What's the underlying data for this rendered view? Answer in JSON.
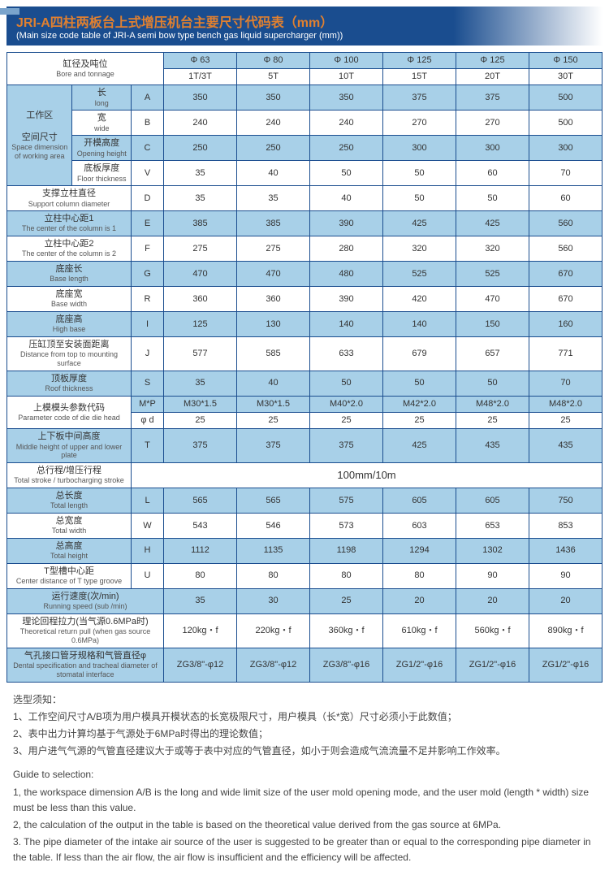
{
  "title": {
    "cn": "JRI-A四柱两板台上式增压机台主要尺寸代码表（mm）",
    "en": "(Main size code table of JRI-A semi bow type bench gas liquid supercharger (mm))"
  },
  "header": {
    "bore_cn": "缸径及吨位",
    "bore_en": "Bore and tonnage",
    "phi": [
      "Φ 63",
      "Φ 80",
      "Φ 100",
      "Φ 125",
      "Φ 125",
      "Φ 150"
    ],
    "ton": [
      "1T/3T",
      "5T",
      "10T",
      "15T",
      "20T",
      "30T"
    ]
  },
  "work": {
    "cn": "工作区",
    "cn2": "空间尺寸",
    "en": "Space dimension",
    "en2": "of working area"
  },
  "rows": [
    {
      "cn": "长",
      "en": "long",
      "code": "A",
      "v": [
        "350",
        "350",
        "350",
        "375",
        "375",
        "500"
      ],
      "bg": "blue"
    },
    {
      "cn": "宽",
      "en": "wide",
      "code": "B",
      "v": [
        "240",
        "240",
        "240",
        "270",
        "270",
        "500"
      ],
      "bg": "white"
    },
    {
      "cn": "开模高度",
      "en": "Opening height",
      "code": "C",
      "v": [
        "250",
        "250",
        "250",
        "300",
        "300",
        "300"
      ],
      "bg": "blue"
    },
    {
      "cn": "底板厚度",
      "en": "Floor thickness",
      "code": "V",
      "v": [
        "35",
        "40",
        "50",
        "50",
        "60",
        "70"
      ],
      "bg": "white"
    }
  ],
  "rows2": [
    {
      "cn": "支撑立柱直径",
      "en": "Support column diameter",
      "code": "D",
      "v": [
        "35",
        "35",
        "40",
        "50",
        "50",
        "60"
      ],
      "bg": "white"
    },
    {
      "cn": "立柱中心距1",
      "en": "The center of the column is 1",
      "code": "E",
      "v": [
        "385",
        "385",
        "390",
        "425",
        "425",
        "560"
      ],
      "bg": "blue"
    },
    {
      "cn": "立柱中心距2",
      "en": "The center of the column is 2",
      "code": "F",
      "v": [
        "275",
        "275",
        "280",
        "320",
        "320",
        "560"
      ],
      "bg": "white"
    },
    {
      "cn": "底座长",
      "en": "Base length",
      "code": "G",
      "v": [
        "470",
        "470",
        "480",
        "525",
        "525",
        "670"
      ],
      "bg": "blue"
    },
    {
      "cn": "底座宽",
      "en": "Base width",
      "code": "R",
      "v": [
        "360",
        "360",
        "390",
        "420",
        "470",
        "670"
      ],
      "bg": "white"
    },
    {
      "cn": "底座高",
      "en": "High base",
      "code": "I",
      "v": [
        "125",
        "130",
        "140",
        "140",
        "150",
        "160"
      ],
      "bg": "blue"
    },
    {
      "cn": "压缸顶至安装面距离",
      "en": "Distance from top to mounting surface",
      "code": "J",
      "v": [
        "577",
        "585",
        "633",
        "679",
        "657",
        "771"
      ],
      "bg": "white"
    },
    {
      "cn": "顶板厚度",
      "en": "Roof thickness",
      "code": "S",
      "v": [
        "35",
        "40",
        "50",
        "50",
        "50",
        "70"
      ],
      "bg": "blue"
    }
  ],
  "param": {
    "cn": "上模模头参数代码",
    "en": "Parameter code of die die head",
    "r1": {
      "code": "M*P",
      "v": [
        "M30*1.5",
        "M30*1.5",
        "M40*2.0",
        "M42*2.0",
        "M48*2.0",
        "M48*2.0"
      ],
      "bg": "blue"
    },
    "r2": {
      "code": "φ d",
      "v": [
        "25",
        "25",
        "25",
        "25",
        "25",
        "25"
      ],
      "bg": "white"
    }
  },
  "rows3": [
    {
      "cn": "上下板中间高度",
      "en": "Middle height of upper and lower plate",
      "code": "T",
      "v": [
        "375",
        "375",
        "375",
        "425",
        "435",
        "435"
      ],
      "bg": "blue"
    }
  ],
  "stroke": {
    "cn": "总行程/增压行程",
    "en": "Total stroke / turbocharging stroke",
    "span": "100mm/10m",
    "bg": "white"
  },
  "rows4": [
    {
      "cn": "总长度",
      "en": "Total length",
      "code": "L",
      "v": [
        "565",
        "565",
        "575",
        "605",
        "605",
        "750"
      ],
      "bg": "blue"
    },
    {
      "cn": "总宽度",
      "en": "Total width",
      "code": "W",
      "v": [
        "543",
        "546",
        "573",
        "603",
        "653",
        "853"
      ],
      "bg": "white"
    },
    {
      "cn": "总高度",
      "en": "Total height",
      "code": "H",
      "v": [
        "1112",
        "1135",
        "1198",
        "1294",
        "1302",
        "1436"
      ],
      "bg": "blue"
    },
    {
      "cn": "T型槽中心距",
      "en": "Center distance of T type groove",
      "code": "U",
      "v": [
        "80",
        "80",
        "80",
        "80",
        "90",
        "90"
      ],
      "bg": "white"
    },
    {
      "cn": "运行速度(次/min)",
      "en": "Running speed (sub /min)",
      "code": "",
      "v": [
        "35",
        "30",
        "25",
        "20",
        "20",
        "20"
      ],
      "bg": "blue"
    },
    {
      "cn": "理论回程拉力(当气源0.6MPa时)",
      "en": "Theoretical return pull (when gas source 0.6MPa)",
      "code": "",
      "v": [
        "120kg・f",
        "220kg・f",
        "360kg・f",
        "610kg・f",
        "560kg・f",
        "890kg・f"
      ],
      "bg": "white"
    },
    {
      "cn": "气孔接口管牙规格和气管直径φ",
      "en": "Dental specification and tracheal diameter of stomatal interface",
      "code": "",
      "v": [
        "ZG3/8\"-φ12",
        "ZG3/8\"-φ12",
        "ZG3/8\"-φ16",
        "ZG1/2\"-φ16",
        "ZG1/2\"-φ16",
        "ZG1/2\"-φ16"
      ],
      "bg": "blue"
    }
  ],
  "notes": {
    "cn_title": "选型须知：",
    "cn": [
      "1、工作空间尺寸A/B项为用户模具开模状态的长宽极限尺寸，用户模具（长*宽）尺寸必须小于此数值；",
      "2、表中出力计算均基于气源处于6MPa时得出的理论数值；",
      "3、用户进气气源的气管直径建议大于或等于表中对应的气管直径，如小于则会造成气流流量不足并影响工作效率。"
    ],
    "en_title": "Guide to selection:",
    "en": [
      "1, the workspace dimension A/B is the long and wide limit size of the user mold opening mode, and the user mold (length * width) size must be less than this value.",
      "2, the calculation of the output in the table is based on the theoretical value derived from the gas source at 6MPa.",
      "3. The pipe diameter of the intake air source of the user is suggested to be greater than or equal to the corresponding pipe diameter in the table. If less than the air flow, the air flow is insufficient and the efficiency will be affected."
    ]
  }
}
